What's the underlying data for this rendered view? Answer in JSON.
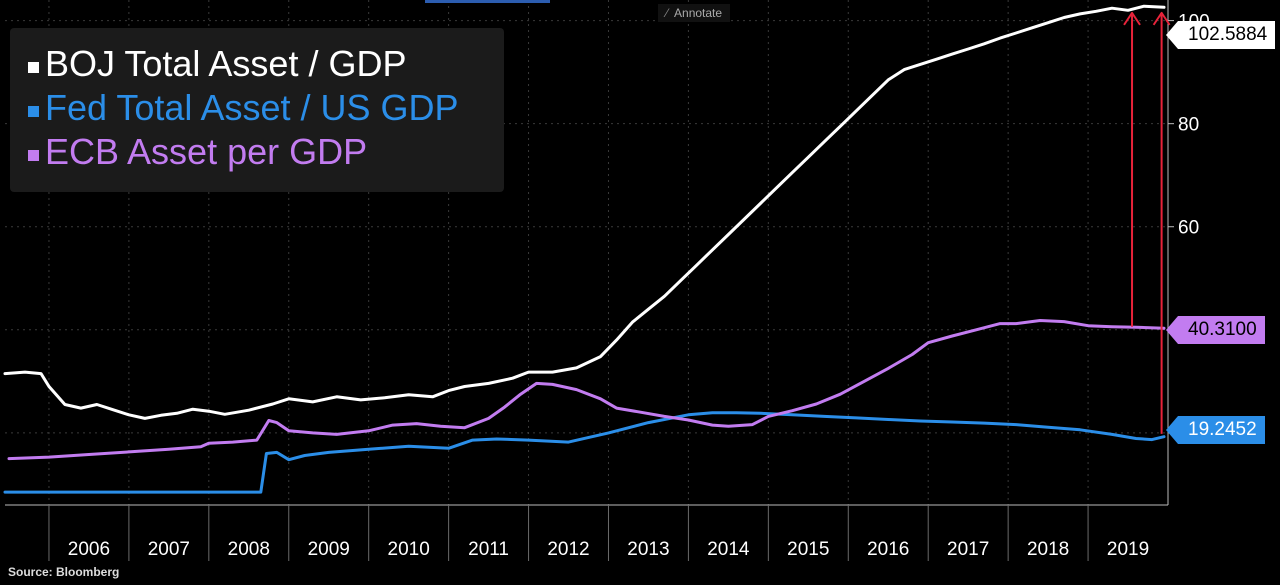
{
  "toolbar": {
    "annotate_label": "Annotate"
  },
  "source": "Source: Bloomberg",
  "chart_data": {
    "type": "line",
    "title": "",
    "xlabel": "",
    "ylabel": "",
    "xlim": [
      2005.45,
      2020.0
    ],
    "ylim": [
      6,
      104
    ],
    "grid": true,
    "legend_position": "top-left",
    "y_ticks": [
      60,
      80,
      100
    ],
    "x_tick_labels": [
      "2006",
      "2007",
      "2008",
      "2009",
      "2010",
      "2011",
      "2012",
      "2013",
      "2014",
      "2015",
      "2016",
      "2017",
      "2018",
      "2019"
    ],
    "series": [
      {
        "name": "BOJ Total Asset / GDP",
        "color": "#ffffff",
        "last_value_label": "102.5884",
        "label_bg": "#ffffff",
        "label_fg": "#000000",
        "x": [
          2005.45,
          2005.7,
          2005.9,
          2006.0,
          2006.2,
          2006.4,
          2006.6,
          2006.8,
          2007.0,
          2007.2,
          2007.4,
          2007.6,
          2007.8,
          2008.0,
          2008.2,
          2008.5,
          2008.8,
          2009.0,
          2009.3,
          2009.6,
          2009.9,
          2010.2,
          2010.5,
          2010.8,
          2011.0,
          2011.2,
          2011.5,
          2011.8,
          2012.0,
          2012.3,
          2012.6,
          2012.9,
          2013.1,
          2013.3,
          2013.5,
          2013.7,
          2013.9,
          2014.1,
          2014.3,
          2014.5,
          2014.7,
          2014.9,
          2015.1,
          2015.3,
          2015.5,
          2015.7,
          2015.9,
          2016.1,
          2016.3,
          2016.5,
          2016.7,
          2016.9,
          2017.1,
          2017.3,
          2017.5,
          2017.7,
          2017.9,
          2018.1,
          2018.3,
          2018.5,
          2018.7,
          2018.9,
          2019.1,
          2019.3,
          2019.5,
          2019.7,
          2019.95
        ],
        "y": [
          31.5,
          31.8,
          31.5,
          29.0,
          25.5,
          24.8,
          25.5,
          24.5,
          23.5,
          22.8,
          23.4,
          23.8,
          24.6,
          24.2,
          23.6,
          24.4,
          25.6,
          26.6,
          26.0,
          27.0,
          26.4,
          26.8,
          27.4,
          27.0,
          28.2,
          29.0,
          29.6,
          30.6,
          31.8,
          31.8,
          32.6,
          34.8,
          38.0,
          41.5,
          44.0,
          46.5,
          49.5,
          52.5,
          55.5,
          58.5,
          61.5,
          64.5,
          67.5,
          70.5,
          73.5,
          76.5,
          79.5,
          82.5,
          85.5,
          88.5,
          90.5,
          91.5,
          92.5,
          93.5,
          94.5,
          95.5,
          96.6,
          97.6,
          98.6,
          99.6,
          100.6,
          101.3,
          101.8,
          102.4,
          102.0,
          102.8,
          102.59
        ]
      },
      {
        "name": "Fed Total Asset / US GDP",
        "color": "#2b8ee8",
        "last_value_label": "19.2452",
        "label_bg": "#2b8ee8",
        "label_fg": "#ffffff",
        "x": [
          2005.45,
          2006.0,
          2007.0,
          2008.0,
          2008.65,
          2008.72,
          2008.85,
          2009.0,
          2009.2,
          2009.5,
          2010.0,
          2010.5,
          2011.0,
          2011.3,
          2011.6,
          2012.0,
          2012.5,
          2013.0,
          2013.5,
          2014.0,
          2014.3,
          2014.6,
          2014.9,
          2015.3,
          2015.7,
          2016.1,
          2016.5,
          2016.9,
          2017.3,
          2017.7,
          2018.1,
          2018.5,
          2018.9,
          2019.3,
          2019.6,
          2019.8,
          2019.95
        ],
        "y": [
          8.5,
          8.5,
          8.5,
          8.5,
          8.5,
          16.0,
          16.2,
          14.8,
          15.6,
          16.2,
          16.8,
          17.4,
          17.0,
          18.6,
          18.8,
          18.6,
          18.2,
          20.0,
          22.0,
          23.5,
          23.9,
          23.9,
          23.8,
          23.5,
          23.2,
          22.9,
          22.6,
          22.3,
          22.1,
          21.9,
          21.6,
          21.1,
          20.6,
          19.7,
          18.9,
          18.7,
          19.25
        ]
      },
      {
        "name": "ECB Asset per GDP",
        "color": "#c27cf0",
        "last_value_label": "40.3100",
        "label_bg": "#c27cf0",
        "label_fg": "#000000",
        "x": [
          2005.5,
          2006.0,
          2006.5,
          2007.0,
          2007.5,
          2007.9,
          2008.0,
          2008.3,
          2008.6,
          2008.75,
          2008.85,
          2009.0,
          2009.3,
          2009.6,
          2010.0,
          2010.3,
          2010.6,
          2010.9,
          2011.2,
          2011.5,
          2011.7,
          2011.9,
          2012.1,
          2012.3,
          2012.6,
          2012.9,
          2013.1,
          2013.4,
          2013.7,
          2014.0,
          2014.3,
          2014.5,
          2014.8,
          2015.0,
          2015.3,
          2015.6,
          2015.9,
          2016.2,
          2016.5,
          2016.8,
          2017.0,
          2017.3,
          2017.6,
          2017.9,
          2018.1,
          2018.4,
          2018.7,
          2019.0,
          2019.3,
          2019.6,
          2019.95
        ],
        "y": [
          15.0,
          15.3,
          15.8,
          16.3,
          16.8,
          17.3,
          18.0,
          18.2,
          18.6,
          22.4,
          22.0,
          20.4,
          20.0,
          19.7,
          20.4,
          21.5,
          21.8,
          21.3,
          21.0,
          22.8,
          25.0,
          27.5,
          29.6,
          29.4,
          28.4,
          26.6,
          24.8,
          24.0,
          23.2,
          22.5,
          21.5,
          21.3,
          21.6,
          23.2,
          24.3,
          25.6,
          27.5,
          30.0,
          32.5,
          35.2,
          37.5,
          38.8,
          40.0,
          41.2,
          41.2,
          41.8,
          41.6,
          40.8,
          40.6,
          40.5,
          40.31
        ]
      }
    ],
    "annotations": [
      {
        "type": "arrow",
        "color": "#e8233a",
        "x": 2019.55,
        "y_from": 40.6,
        "y_to": 101.5
      },
      {
        "type": "arrow",
        "color": "#e8233a",
        "x": 2019.92,
        "y_from": 19.8,
        "y_to": 101.5
      }
    ]
  }
}
